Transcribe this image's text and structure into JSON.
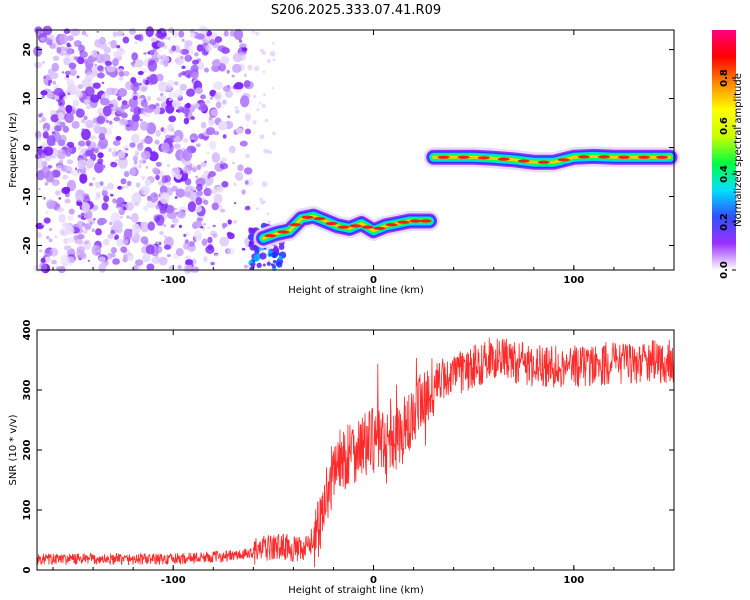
{
  "title": "S206.2025.333.07.41.R09",
  "chart_data": [
    {
      "type": "heatmap",
      "xlabel": "Height of straight line (km)",
      "ylabel": "Frequency (Hz)",
      "xlim": [
        -168,
        150
      ],
      "ylim": [
        -25,
        24
      ],
      "x_ticks": [
        -100,
        0,
        100
      ],
      "y_ticks": [
        -20,
        -10,
        0,
        10,
        20
      ],
      "colorbar": {
        "label": "Normalized spectral amplitude",
        "range": [
          0,
          1
        ],
        "ticks": [
          0.0,
          0.2,
          0.4,
          0.6,
          0.8
        ],
        "tick_labels": [
          "0.0",
          "0.2",
          "0.4",
          "0.6",
          "0.8"
        ],
        "colors": [
          "#ffffff",
          "#9b30ff",
          "#3050ff",
          "#00e0ff",
          "#00ff40",
          "#c8ff00",
          "#ffff00",
          "#ff8800",
          "#ff0000",
          "#ff0080"
        ]
      },
      "noise_region": {
        "x": [
          -168,
          -62
        ],
        "y": [
          -25,
          24
        ]
      },
      "ridge_segments": [
        {
          "x": [
            -55,
            -48,
            -42,
            -36,
            -30,
            -24,
            -18,
            -12,
            -6,
            0,
            6,
            12,
            18,
            24,
            28
          ],
          "y": [
            -18.5,
            -17.5,
            -17,
            -14.5,
            -14,
            -15,
            -16,
            -16.5,
            -15.5,
            -17,
            -16,
            -15.5,
            -15,
            -15,
            -15
          ]
        },
        {
          "x": [
            30,
            40,
            50,
            60,
            70,
            80,
            90,
            100,
            110,
            120,
            130,
            140,
            148
          ],
          "y": [
            -2,
            -2,
            -2,
            -2.2,
            -2.5,
            -3,
            -3,
            -2,
            -1.8,
            -2,
            -2,
            -2,
            -2
          ]
        }
      ]
    },
    {
      "type": "line",
      "xlabel": "Height of straight line (km)",
      "ylabel": "SNR (10 * v/v)",
      "xlim": [
        -168,
        150
      ],
      "ylim": [
        0,
        400
      ],
      "x_ticks": [
        -100,
        0,
        100
      ],
      "y_ticks": [
        0,
        100,
        200,
        300,
        400
      ],
      "color": "#ff2a2a",
      "trend": {
        "x": [
          -168,
          -100,
          -65,
          -55,
          -45,
          -35,
          -28,
          -20,
          -10,
          0,
          10,
          20,
          28,
          35,
          45,
          60,
          80,
          100,
          120,
          150
        ],
        "y": [
          18,
          18,
          25,
          35,
          40,
          30,
          60,
          170,
          200,
          215,
          215,
          250,
          300,
          320,
          330,
          355,
          340,
          340,
          345,
          348
        ]
      }
    }
  ]
}
